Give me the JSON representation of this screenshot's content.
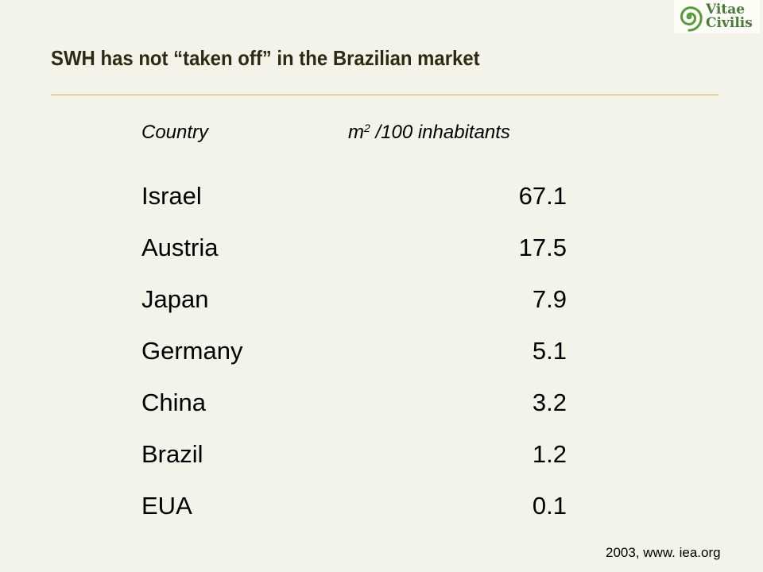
{
  "logo": {
    "line1": "Vitae",
    "line2": "Civilis",
    "icon": "spiral-icon",
    "color": "#4a7a3a"
  },
  "title": "SWH has not “taken off” in the Brazilian market",
  "table": {
    "header_country": "Country",
    "header_unit_prefix": "m",
    "header_unit_sup": "2",
    "header_unit_suffix": " /100 inhabitants",
    "rows": [
      {
        "country": "Israel",
        "value": "67.1"
      },
      {
        "country": "Austria",
        "value": "17.5"
      },
      {
        "country": "Japan",
        "value": "7.9"
      },
      {
        "country": "Germany",
        "value": "5.1"
      },
      {
        "country": "China",
        "value": "3.2"
      },
      {
        "country": "Brazil",
        "value": "1.2"
      },
      {
        "country": "EUA",
        "value": "0.1"
      }
    ]
  },
  "source": "2003, www. iea.org"
}
